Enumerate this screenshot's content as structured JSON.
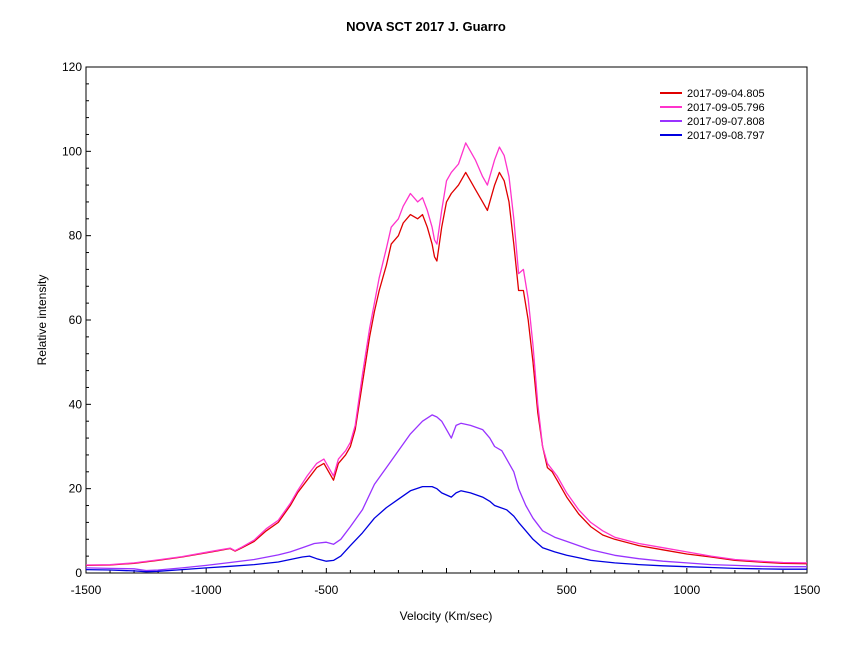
{
  "chart_data": {
    "type": "line",
    "title": "NOVA SCT 2017  J. Guarro",
    "xlabel": "Velocity (Km/sec)",
    "ylabel": "Relative intensity",
    "xlim": [
      -1500,
      1500
    ],
    "ylim": [
      0,
      120
    ],
    "xticks": [
      -1500,
      -1000,
      -500,
      0,
      500,
      1000,
      1500
    ],
    "xtick_labels": [
      "-1500",
      "-1000",
      "-500",
      "",
      "500",
      "1000",
      "1500"
    ],
    "yticks": [
      0,
      20,
      40,
      60,
      80,
      100,
      120
    ],
    "ytick_labels": [
      "0",
      "20",
      "40",
      "60",
      "80",
      "100",
      "120"
    ],
    "grid": false,
    "legend_position": "top-right",
    "series": [
      {
        "name": "2017-09-04.805",
        "color": "#e00000",
        "points": [
          [
            -1500,
            1.8
          ],
          [
            -1400,
            1.9
          ],
          [
            -1300,
            2.3
          ],
          [
            -1200,
            3
          ],
          [
            -1100,
            3.8
          ],
          [
            -1000,
            4.8
          ],
          [
            -950,
            5.3
          ],
          [
            -900,
            5.8
          ],
          [
            -880,
            5.2
          ],
          [
            -850,
            6
          ],
          [
            -800,
            7.5
          ],
          [
            -750,
            10
          ],
          [
            -700,
            12
          ],
          [
            -650,
            16
          ],
          [
            -620,
            19
          ],
          [
            -580,
            22
          ],
          [
            -540,
            25
          ],
          [
            -510,
            26
          ],
          [
            -490,
            24
          ],
          [
            -470,
            22
          ],
          [
            -450,
            26
          ],
          [
            -420,
            28
          ],
          [
            -400,
            30
          ],
          [
            -380,
            34
          ],
          [
            -350,
            45
          ],
          [
            -320,
            56
          ],
          [
            -300,
            62
          ],
          [
            -280,
            67
          ],
          [
            -250,
            73
          ],
          [
            -230,
            78
          ],
          [
            -200,
            80
          ],
          [
            -180,
            83
          ],
          [
            -150,
            85
          ],
          [
            -120,
            84
          ],
          [
            -100,
            85
          ],
          [
            -80,
            82
          ],
          [
            -60,
            78
          ],
          [
            -50,
            75
          ],
          [
            -40,
            74
          ],
          [
            -20,
            82
          ],
          [
            0,
            88
          ],
          [
            20,
            90
          ],
          [
            50,
            92
          ],
          [
            80,
            95
          ],
          [
            100,
            93
          ],
          [
            120,
            91
          ],
          [
            150,
            88
          ],
          [
            170,
            86
          ],
          [
            180,
            88
          ],
          [
            200,
            92
          ],
          [
            220,
            95
          ],
          [
            240,
            93
          ],
          [
            260,
            88
          ],
          [
            280,
            78
          ],
          [
            300,
            67
          ],
          [
            320,
            67
          ],
          [
            340,
            60
          ],
          [
            360,
            50
          ],
          [
            380,
            38
          ],
          [
            400,
            30
          ],
          [
            420,
            25
          ],
          [
            440,
            24
          ],
          [
            460,
            22
          ],
          [
            500,
            18
          ],
          [
            550,
            14
          ],
          [
            600,
            11
          ],
          [
            650,
            9
          ],
          [
            700,
            8
          ],
          [
            800,
            6.5
          ],
          [
            900,
            5.5
          ],
          [
            1000,
            4.5
          ],
          [
            1100,
            3.8
          ],
          [
            1200,
            3
          ],
          [
            1300,
            2.6
          ],
          [
            1400,
            2.3
          ],
          [
            1500,
            2.2
          ]
        ]
      },
      {
        "name": "2017-09-05.796",
        "color": "#ff33cc",
        "points": [
          [
            -1500,
            1.9
          ],
          [
            -1400,
            2
          ],
          [
            -1300,
            2.4
          ],
          [
            -1200,
            3.1
          ],
          [
            -1100,
            3.9
          ],
          [
            -1000,
            4.9
          ],
          [
            -950,
            5.4
          ],
          [
            -900,
            5.9
          ],
          [
            -880,
            5.3
          ],
          [
            -850,
            6.2
          ],
          [
            -800,
            7.8
          ],
          [
            -750,
            10.5
          ],
          [
            -700,
            12.5
          ],
          [
            -650,
            16.5
          ],
          [
            -620,
            19.5
          ],
          [
            -580,
            23
          ],
          [
            -540,
            26
          ],
          [
            -510,
            27
          ],
          [
            -490,
            25
          ],
          [
            -470,
            23
          ],
          [
            -450,
            27
          ],
          [
            -420,
            29
          ],
          [
            -400,
            31
          ],
          [
            -380,
            35
          ],
          [
            -350,
            47
          ],
          [
            -320,
            58
          ],
          [
            -300,
            64
          ],
          [
            -280,
            70
          ],
          [
            -250,
            77
          ],
          [
            -230,
            82
          ],
          [
            -200,
            84
          ],
          [
            -180,
            87
          ],
          [
            -150,
            90
          ],
          [
            -120,
            88
          ],
          [
            -100,
            89
          ],
          [
            -80,
            86
          ],
          [
            -60,
            82
          ],
          [
            -50,
            79
          ],
          [
            -40,
            78
          ],
          [
            -20,
            86
          ],
          [
            0,
            93
          ],
          [
            20,
            95
          ],
          [
            50,
            97
          ],
          [
            80,
            102
          ],
          [
            100,
            100
          ],
          [
            120,
            98
          ],
          [
            150,
            94
          ],
          [
            170,
            92
          ],
          [
            180,
            94
          ],
          [
            200,
            98
          ],
          [
            220,
            101
          ],
          [
            240,
            99
          ],
          [
            260,
            94
          ],
          [
            280,
            84
          ],
          [
            300,
            71
          ],
          [
            320,
            72
          ],
          [
            340,
            65
          ],
          [
            360,
            54
          ],
          [
            380,
            40
          ],
          [
            400,
            30
          ],
          [
            420,
            26
          ],
          [
            440,
            24.5
          ],
          [
            460,
            23
          ],
          [
            500,
            19
          ],
          [
            550,
            15
          ],
          [
            600,
            12
          ],
          [
            650,
            10
          ],
          [
            700,
            8.5
          ],
          [
            800,
            7
          ],
          [
            900,
            6
          ],
          [
            1000,
            5
          ],
          [
            1100,
            4
          ],
          [
            1200,
            3.2
          ],
          [
            1300,
            2.8
          ],
          [
            1400,
            2.5
          ],
          [
            1500,
            2.4
          ]
        ]
      },
      {
        "name": "2017-09-07.808",
        "color": "#9933ff",
        "points": [
          [
            -1500,
            1.2
          ],
          [
            -1400,
            1.1
          ],
          [
            -1300,
            1
          ],
          [
            -1250,
            0.6
          ],
          [
            -1200,
            0.7
          ],
          [
            -1100,
            1.2
          ],
          [
            -1000,
            1.8
          ],
          [
            -900,
            2.5
          ],
          [
            -800,
            3.2
          ],
          [
            -700,
            4.3
          ],
          [
            -650,
            5
          ],
          [
            -600,
            6
          ],
          [
            -550,
            7
          ],
          [
            -500,
            7.3
          ],
          [
            -470,
            6.8
          ],
          [
            -440,
            8
          ],
          [
            -400,
            11
          ],
          [
            -350,
            15
          ],
          [
            -300,
            21
          ],
          [
            -250,
            25
          ],
          [
            -200,
            29
          ],
          [
            -150,
            33
          ],
          [
            -100,
            36
          ],
          [
            -60,
            37.5
          ],
          [
            -40,
            37
          ],
          [
            -20,
            36
          ],
          [
            0,
            34
          ],
          [
            20,
            32
          ],
          [
            40,
            35
          ],
          [
            60,
            35.5
          ],
          [
            100,
            35
          ],
          [
            150,
            34
          ],
          [
            180,
            32
          ],
          [
            200,
            30
          ],
          [
            230,
            29
          ],
          [
            250,
            27
          ],
          [
            280,
            24
          ],
          [
            300,
            20
          ],
          [
            330,
            16
          ],
          [
            360,
            13
          ],
          [
            400,
            10
          ],
          [
            450,
            8.5
          ],
          [
            500,
            7.5
          ],
          [
            550,
            6.5
          ],
          [
            600,
            5.5
          ],
          [
            700,
            4.2
          ],
          [
            800,
            3.4
          ],
          [
            900,
            2.8
          ],
          [
            1000,
            2.4
          ],
          [
            1100,
            2
          ],
          [
            1200,
            1.8
          ],
          [
            1300,
            1.6
          ],
          [
            1400,
            1.5
          ],
          [
            1500,
            1.5
          ]
        ]
      },
      {
        "name": "2017-09-08.797",
        "color": "#0000e0",
        "points": [
          [
            -1500,
            0.8
          ],
          [
            -1400,
            0.7
          ],
          [
            -1300,
            0.5
          ],
          [
            -1250,
            0.3
          ],
          [
            -1200,
            0.4
          ],
          [
            -1100,
            0.8
          ],
          [
            -1000,
            1.2
          ],
          [
            -900,
            1.6
          ],
          [
            -800,
            2
          ],
          [
            -700,
            2.6
          ],
          [
            -650,
            3.2
          ],
          [
            -600,
            3.8
          ],
          [
            -570,
            4
          ],
          [
            -540,
            3.4
          ],
          [
            -500,
            2.8
          ],
          [
            -470,
            3
          ],
          [
            -440,
            4
          ],
          [
            -400,
            6.5
          ],
          [
            -350,
            9.5
          ],
          [
            -300,
            13
          ],
          [
            -250,
            15.5
          ],
          [
            -200,
            17.5
          ],
          [
            -150,
            19.5
          ],
          [
            -100,
            20.5
          ],
          [
            -60,
            20.5
          ],
          [
            -40,
            20
          ],
          [
            -20,
            19
          ],
          [
            0,
            18.5
          ],
          [
            20,
            18
          ],
          [
            40,
            19
          ],
          [
            60,
            19.5
          ],
          [
            100,
            19
          ],
          [
            150,
            18
          ],
          [
            180,
            17
          ],
          [
            200,
            16
          ],
          [
            250,
            15
          ],
          [
            280,
            13.5
          ],
          [
            300,
            12
          ],
          [
            330,
            10
          ],
          [
            360,
            8
          ],
          [
            400,
            6
          ],
          [
            450,
            5
          ],
          [
            500,
            4.2
          ],
          [
            550,
            3.6
          ],
          [
            600,
            3
          ],
          [
            700,
            2.4
          ],
          [
            800,
            2
          ],
          [
            900,
            1.7
          ],
          [
            1000,
            1.5
          ],
          [
            1100,
            1.3
          ],
          [
            1200,
            1.1
          ],
          [
            1300,
            1
          ],
          [
            1400,
            0.9
          ],
          [
            1500,
            0.9
          ]
        ]
      }
    ]
  }
}
